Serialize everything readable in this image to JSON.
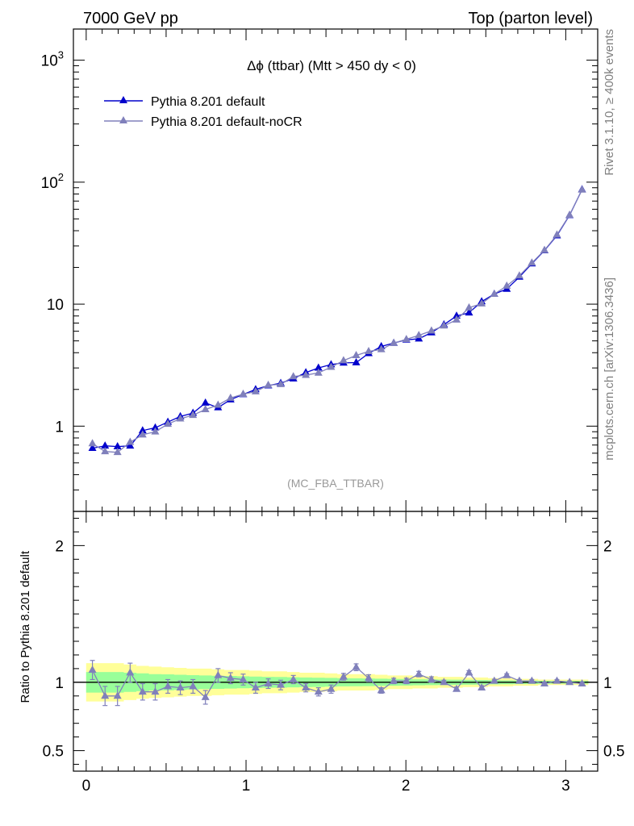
{
  "header": {
    "left": "7000 GeV pp",
    "right": "Top (parton level)"
  },
  "side_labels": {
    "rivet": "Rivet 3.1.10, ≥ 400k events",
    "mcplots": "mcplots.cern.ch [arXiv:1306.3436]"
  },
  "chart_data": [
    {
      "type": "line",
      "title": "Δϕ (ttbar) (Mtt > 450 dy < 0)",
      "analysis_label": "(MC_FBA_TTBAR)",
      "xlabel": "",
      "ylabel": "",
      "xlim": [
        -0.08,
        3.2
      ],
      "ylim": [
        0.2,
        1800
      ],
      "log_y": true,
      "y_tick_labels": [
        "1",
        "10",
        "10²",
        "10³"
      ],
      "x": [
        0.039,
        0.118,
        0.196,
        0.275,
        0.353,
        0.432,
        0.511,
        0.589,
        0.668,
        0.746,
        0.825,
        0.903,
        0.982,
        1.06,
        1.139,
        1.217,
        1.296,
        1.374,
        1.453,
        1.532,
        1.61,
        1.689,
        1.767,
        1.846,
        1.924,
        2.003,
        2.081,
        2.16,
        2.238,
        2.317,
        2.395,
        2.474,
        2.553,
        2.631,
        2.71,
        2.788,
        2.867,
        2.945,
        3.024,
        3.102
      ],
      "series": [
        {
          "name": "Pythia 8.201 default",
          "color": "#0000cc",
          "values": [
            0.66,
            0.69,
            0.68,
            0.69,
            0.92,
            0.97,
            1.08,
            1.2,
            1.28,
            1.55,
            1.42,
            1.65,
            1.82,
            2.0,
            2.15,
            2.25,
            2.45,
            2.75,
            3.0,
            3.2,
            3.3,
            3.32,
            3.95,
            4.5,
            4.8,
            5.1,
            5.2,
            5.85,
            6.8,
            8.0,
            8.5,
            10.5,
            12.1,
            13.3,
            16.7,
            21.5,
            27.5,
            36.5,
            53.5,
            87.0
          ]
        },
        {
          "name": "Pythia 8.201 default-noCR",
          "color": "#8080bb",
          "values": [
            0.72,
            0.62,
            0.61,
            0.74,
            0.85,
            0.9,
            1.04,
            1.15,
            1.23,
            1.37,
            1.49,
            1.7,
            1.83,
            1.92,
            2.17,
            2.2,
            2.55,
            2.62,
            2.73,
            3.05,
            3.45,
            3.8,
            4.1,
            4.25,
            4.8,
            5.15,
            5.55,
            6.05,
            6.65,
            7.45,
            9.35,
            10.1,
            12.1,
            14.1,
            17.1,
            21.8,
            27.7,
            37.0,
            53.8,
            86.6
          ]
        }
      ]
    },
    {
      "type": "line",
      "title": "",
      "xlabel": "",
      "ylabel": "Ratio to Pythia 8.201 default",
      "xlim": [
        -0.08,
        3.2
      ],
      "ylim": [
        0.35,
        2.25
      ],
      "y_tick_labels": [
        "0.5",
        "1",
        "2"
      ],
      "x_tick_labels": [
        "0",
        "1",
        "2",
        "3"
      ],
      "x": [
        0.039,
        0.118,
        0.196,
        0.275,
        0.353,
        0.432,
        0.511,
        0.589,
        0.668,
        0.746,
        0.825,
        0.903,
        0.982,
        1.06,
        1.139,
        1.217,
        1.296,
        1.374,
        1.453,
        1.532,
        1.61,
        1.689,
        1.767,
        1.846,
        1.924,
        2.003,
        2.081,
        2.16,
        2.238,
        2.317,
        2.395,
        2.474,
        2.553,
        2.631,
        2.71,
        2.788,
        2.867,
        2.945,
        3.024,
        3.102
      ],
      "reference": 1.0,
      "band_yellow": [
        0.14,
        0.14,
        0.14,
        0.13,
        0.12,
        0.115,
        0.11,
        0.105,
        0.1,
        0.1,
        0.095,
        0.09,
        0.09,
        0.085,
        0.08,
        0.08,
        0.075,
        0.07,
        0.07,
        0.065,
        0.06,
        0.06,
        0.06,
        0.055,
        0.05,
        0.05,
        0.045,
        0.045,
        0.04,
        0.04,
        0.035,
        0.035,
        0.03,
        0.03,
        0.025,
        0.025,
        0.02,
        0.02,
        0.02,
        0.02
      ],
      "band_green": [
        0.075,
        0.075,
        0.075,
        0.07,
        0.065,
        0.06,
        0.058,
        0.055,
        0.052,
        0.05,
        0.048,
        0.046,
        0.044,
        0.042,
        0.04,
        0.039,
        0.037,
        0.035,
        0.034,
        0.032,
        0.03,
        0.029,
        0.028,
        0.026,
        0.025,
        0.024,
        0.022,
        0.021,
        0.02,
        0.019,
        0.018,
        0.017,
        0.015,
        0.014,
        0.013,
        0.012,
        0.011,
        0.01,
        0.01,
        0.01
      ],
      "series": [
        {
          "name": "Pythia 8.201 default-noCR",
          "color": "#8080bb",
          "values": [
            1.09,
            0.9,
            0.9,
            1.07,
            0.93,
            0.93,
            0.97,
            0.96,
            0.97,
            0.89,
            1.05,
            1.03,
            1.02,
            0.96,
            0.99,
            0.98,
            1.02,
            0.96,
            0.93,
            0.95,
            1.04,
            1.11,
            1.03,
            0.94,
            1.01,
            1.01,
            1.06,
            1.02,
            1.0,
            0.95,
            1.07,
            0.96,
            1.01,
            1.05,
            1.01,
            1.01,
            0.99,
            1.01,
            1.0,
            0.99
          ],
          "errors": [
            0.07,
            0.07,
            0.07,
            0.07,
            0.06,
            0.06,
            0.05,
            0.05,
            0.05,
            0.05,
            0.05,
            0.04,
            0.04,
            0.04,
            0.035,
            0.035,
            0.03,
            0.03,
            0.03,
            0.03,
            0.025,
            0.025,
            0.025,
            0.02,
            0.02,
            0.02,
            0.02,
            0.02,
            0.015,
            0.015,
            0.015,
            0.015,
            0.012,
            0.012,
            0.01,
            0.01,
            0.01,
            0.01,
            0.01,
            0.01
          ]
        }
      ]
    }
  ]
}
